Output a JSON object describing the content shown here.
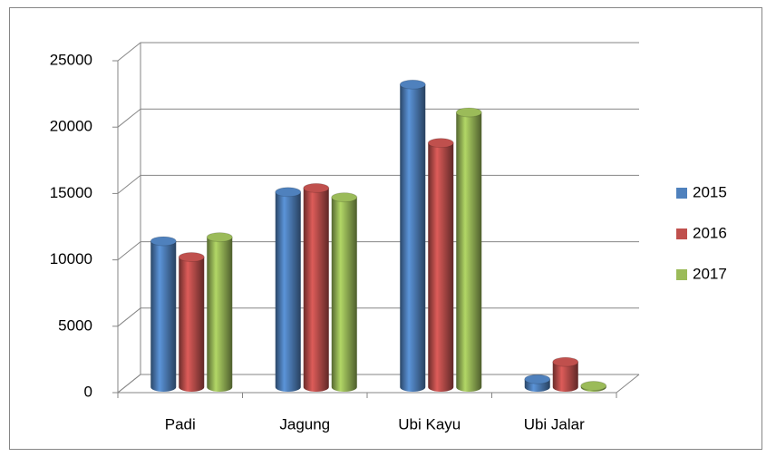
{
  "chart_data": {
    "type": "bar3d",
    "categories": [
      "Padi",
      "Jagung",
      "Ubi Kayu",
      "Ubi Jalar"
    ],
    "series": [
      {
        "name": "2015",
        "color": "#4f81bd",
        "values": [
          11000,
          14700,
          22800,
          600
        ]
      },
      {
        "name": "2016",
        "color": "#c0504d",
        "values": [
          9800,
          15000,
          18400,
          1900
        ]
      },
      {
        "name": "2017",
        "color": "#9bbb59",
        "values": [
          11300,
          14300,
          20700,
          100
        ]
      }
    ],
    "ylim": [
      0,
      25000
    ],
    "yticks": [
      0,
      5000,
      10000,
      15000,
      20000,
      25000
    ],
    "grid": true,
    "legend": "right"
  }
}
